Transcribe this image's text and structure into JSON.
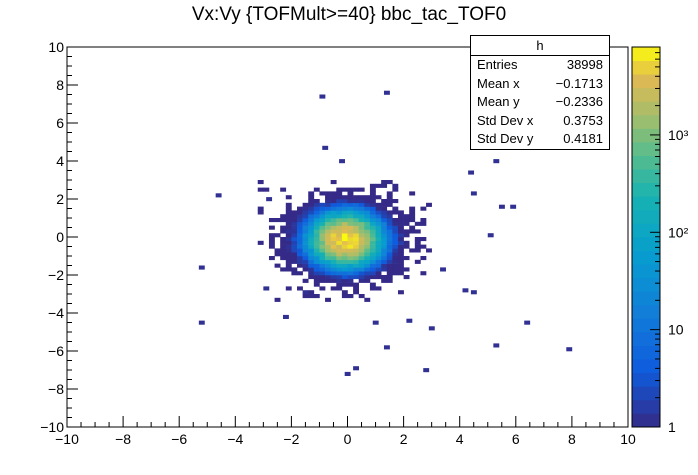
{
  "chart_data": {
    "type": "heatmap",
    "title": "Vx:Vy {TOFMult>=40} bbc_tac_TOF0",
    "xlabel": "",
    "ylabel": "",
    "xlim": [
      -10,
      10
    ],
    "ylim": [
      -10,
      10
    ],
    "x_ticks": [
      "−10",
      "−8",
      "−6",
      "−4",
      "−2",
      "0",
      "2",
      "4",
      "6",
      "8",
      "10"
    ],
    "y_ticks": [
      "−10",
      "−8",
      "−6",
      "−4",
      "−2",
      "0",
      "2",
      "4",
      "6",
      "8",
      "10"
    ],
    "colorbar": {
      "scale": "log",
      "range": [
        1,
        8000
      ],
      "ticks": [
        "1",
        "10",
        "10²",
        "10³"
      ]
    },
    "distribution": {
      "center_x": -0.17,
      "center_y": -0.23,
      "std_x": 0.3753,
      "std_y": 0.4181
    },
    "outliers": [
      [
        -1.0,
        7.3
      ],
      [
        1.3,
        7.5
      ],
      [
        -0.3,
        3.9
      ],
      [
        -0.9,
        4.6
      ],
      [
        5.2,
        3.9
      ],
      [
        4.3,
        3.3
      ],
      [
        -4.7,
        2.1
      ],
      [
        4.4,
        2.2
      ],
      [
        5.4,
        1.5
      ],
      [
        5.8,
        1.5
      ],
      [
        5.0,
        0.0
      ],
      [
        -5.3,
        -1.7
      ],
      [
        -5.3,
        -4.6
      ],
      [
        6.3,
        -4.6
      ],
      [
        4.1,
        -2.9
      ],
      [
        4.4,
        -3.0
      ],
      [
        5.2,
        -5.8
      ],
      [
        7.8,
        -6.0
      ],
      [
        1.3,
        -5.9
      ],
      [
        0.9,
        -4.6
      ],
      [
        2.9,
        -4.9
      ],
      [
        2.7,
        -7.1
      ],
      [
        -0.1,
        -7.3
      ],
      [
        0.2,
        -7.0
      ],
      [
        -1.6,
        -3.0
      ],
      [
        -2.3,
        -4.3
      ],
      [
        2.1,
        -4.5
      ],
      [
        -3.0,
        -2.8
      ],
      [
        3.3,
        -1.8
      ],
      [
        -2.9,
        1.9
      ]
    ],
    "stats": {
      "name": "h",
      "rows": [
        {
          "label": "Entries",
          "value": "38998"
        },
        {
          "label": "Mean x",
          "value": "−0.1713"
        },
        {
          "label": "Mean y",
          "value": "−0.2336"
        },
        {
          "label": "Std Dev x",
          "value": "0.3753"
        },
        {
          "label": "Std Dev y",
          "value": "0.4181"
        }
      ]
    }
  }
}
